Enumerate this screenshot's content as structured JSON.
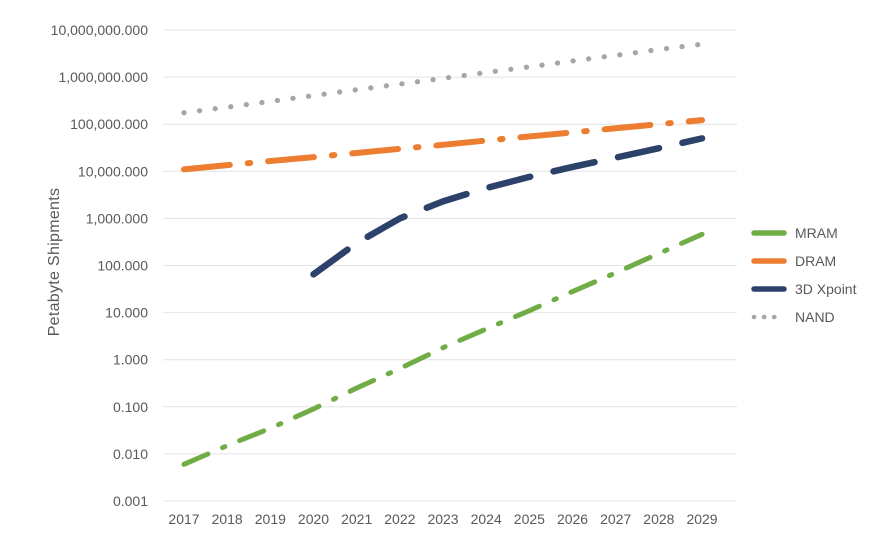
{
  "chart_data": {
    "type": "line",
    "title": "",
    "ylabel": "Petabyte Shipments",
    "xlabel": "",
    "y_scale": "log10",
    "ylim": [
      0.001,
      10000000
    ],
    "grid": "horizontal-only",
    "legend_position": "right-middle",
    "background_color": "#FFFFFF",
    "axis_text_color": "#595959",
    "gridline_color": "#E4E4E4",
    "categories": [
      "2017",
      "2018",
      "2019",
      "2020",
      "2021",
      "2022",
      "2023",
      "2024",
      "2025",
      "2026",
      "2027",
      "2028",
      "2029"
    ],
    "ytick_labels": [
      "10,000,000.000",
      "1,000,000.000",
      "100,000.000",
      "10,000.000",
      "1,000.000",
      "100.000",
      "10.000",
      "1.000",
      "0.100",
      "0.010",
      "0.001"
    ],
    "series": [
      {
        "name": "MRAM",
        "color": "#70AD47",
        "line_style": "dash-dot",
        "values": [
          0.006,
          0.015,
          0.035,
          0.09,
          0.25,
          0.65,
          1.8,
          4.5,
          11,
          28,
          70,
          180,
          460
        ]
      },
      {
        "name": "DRAM",
        "color": "#ED7D31",
        "line_style": "long-dash-dot",
        "values": [
          11000,
          13500,
          16500,
          20000,
          24500,
          30000,
          36500,
          45000,
          55000,
          67000,
          82000,
          100000,
          122000
        ]
      },
      {
        "name": "3D Xpoint",
        "color": "#2C426B",
        "line_style": "long-dash",
        "values": [
          null,
          null,
          null,
          65,
          300,
          1000,
          2300,
          4400,
          7600,
          12400,
          19500,
          31000,
          50000
        ]
      },
      {
        "name": "NAND",
        "color": "#A6A6A6",
        "line_style": "dotted",
        "values": [
          175000,
          230000,
          305000,
          405000,
          540000,
          710000,
          940000,
          1250000,
          1650000,
          2200000,
          2900000,
          3850000,
          5000000
        ]
      }
    ]
  }
}
